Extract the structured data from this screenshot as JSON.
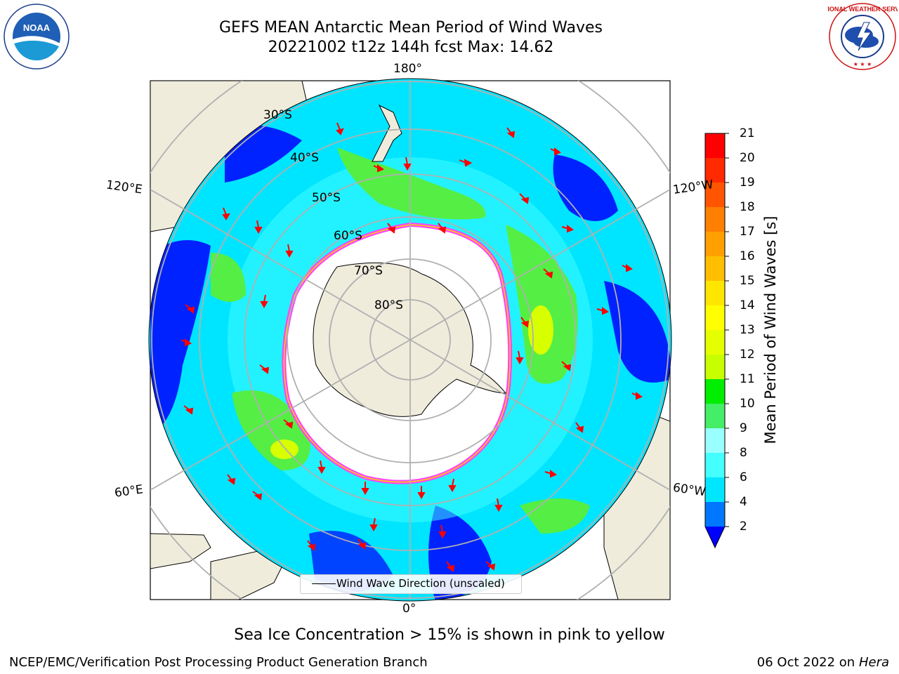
{
  "header": {
    "title_line1": "GEFS MEAN Antarctic Mean Period of Wind Waves",
    "title_line2": "20221002 t12z 144h fcst   Max: 14.62"
  },
  "map": {
    "projection": "south-polar-stereographic",
    "longitude_labels": {
      "top": "180°",
      "bottom": "0°",
      "upper_left": "120°E",
      "upper_right": "120°W",
      "lower_left": "60°E",
      "lower_right": "60°W"
    },
    "latitude_labels": [
      "30°S",
      "40°S",
      "50°S",
      "60°S",
      "70°S",
      "80°S"
    ],
    "legend_text": "Wind Wave Direction (unscaled)",
    "colors": {
      "land": "#efecdc",
      "ocean_low": "#0000ff",
      "ocean_mid": "#00e5ff",
      "ocean_high": "#66ee44",
      "sea_ice": "#ff44ff",
      "arrows": "#ff0000",
      "grid": "#b0b0b0"
    }
  },
  "colorbar": {
    "label": "Mean Period of Wind Waves [s]",
    "ticks": [
      "21",
      "20",
      "19",
      "18",
      "17",
      "16",
      "15",
      "14",
      "13",
      "12",
      "11",
      "10",
      "9",
      "8",
      "6",
      "4",
      "2"
    ],
    "colors": [
      "#ff0000",
      "#ff2a00",
      "#ff5500",
      "#ff7f00",
      "#ff9f00",
      "#ffbf00",
      "#ffe600",
      "#ffff00",
      "#e6ff00",
      "#c8ff00",
      "#66ff22",
      "#00ee00",
      "#44ee66",
      "#66ffaa",
      "#99ffff",
      "#44ffff",
      "#00e6ff",
      "#0077ff",
      "#0000ff"
    ]
  },
  "footer": {
    "note": "Sea Ice Concentration > 15% is shown in pink to yellow",
    "org": "NCEP/EMC/Verification Post Processing Product Generation Branch",
    "date": "06 Oct 2022 on ",
    "machine": "Hera"
  },
  "logos": {
    "noaa": "NOAA",
    "nws": "NATIONAL WEATHER SERVICE"
  }
}
